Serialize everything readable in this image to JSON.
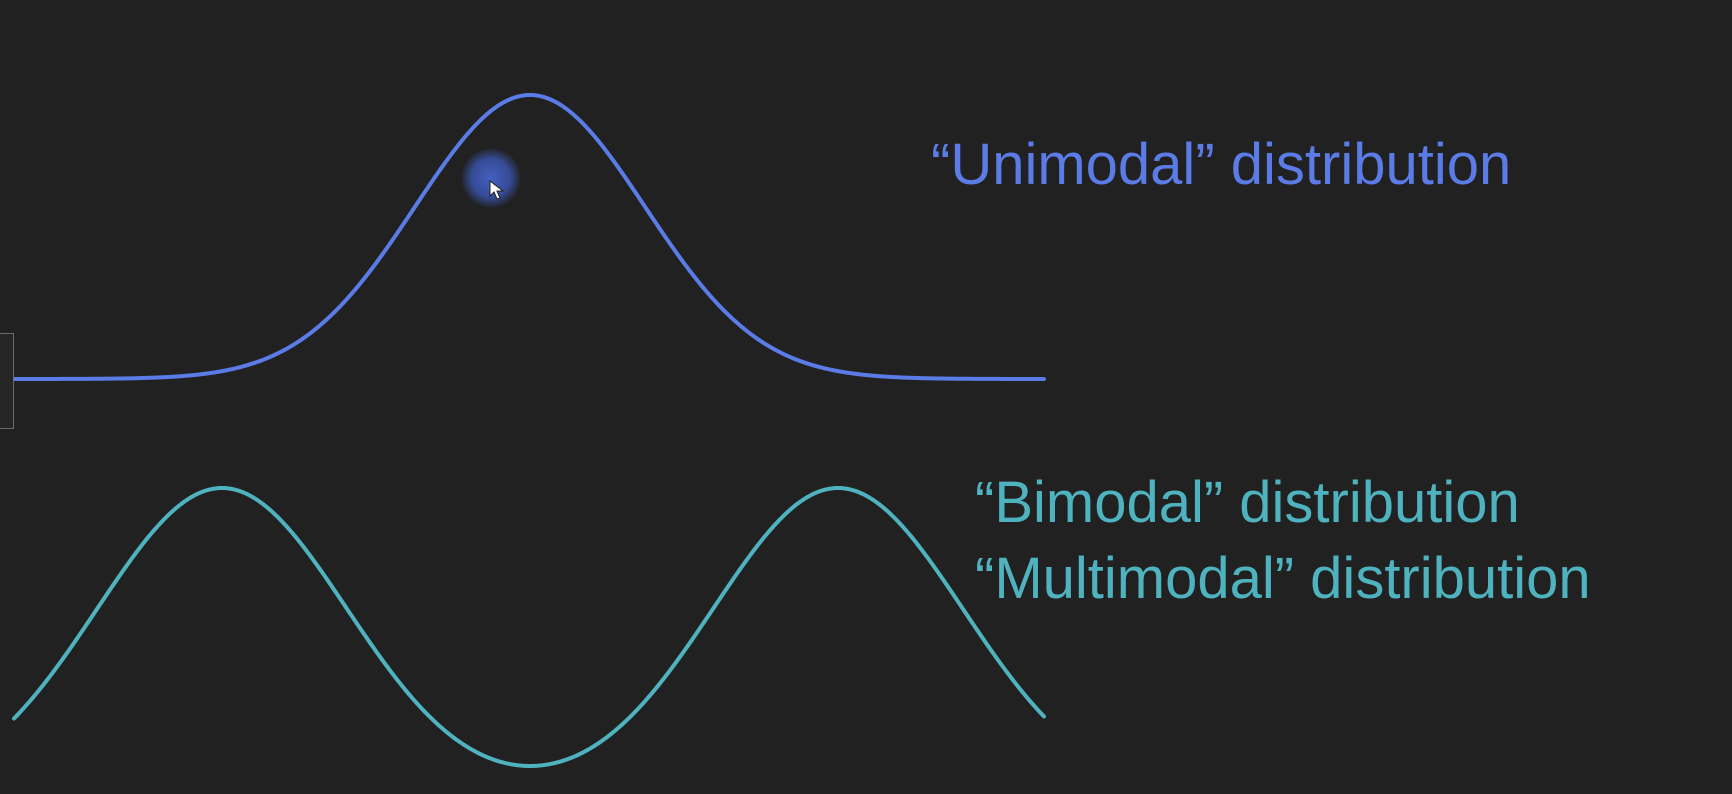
{
  "labels": {
    "unimodal": "“Unimodal” distribution",
    "bimodal": "“Bimodal” distribution",
    "multimodal": "“Multimodal” distribution"
  },
  "colors": {
    "background": "#212121",
    "unimodal": "#5b7be6",
    "bimodal": "#4fb3bf",
    "cursor_halo": "#4664c8"
  },
  "icons": {
    "cursor": "mouse-pointer-icon"
  }
}
